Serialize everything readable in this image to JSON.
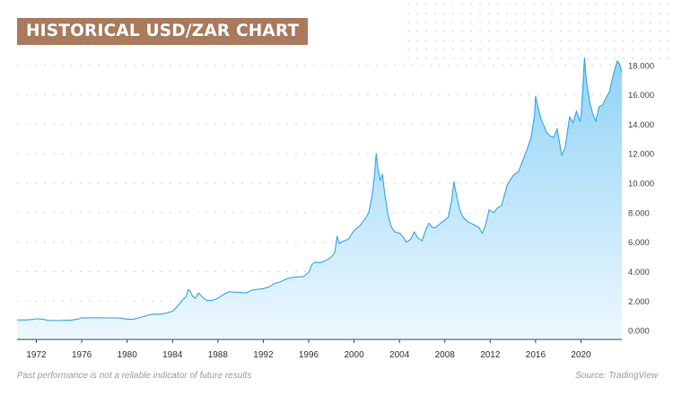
{
  "title": "HISTORICAL USD/ZAR CHART",
  "footnote": "Past performance is not a reliable indicator of future results",
  "source": "Source: TradingView",
  "colors": {
    "title_background": "#a97a5c",
    "line": "#2ea8ea",
    "area_top": "#8fd3f7",
    "area_bottom": "#eef8fe"
  },
  "chart_data": {
    "type": "area",
    "title": "HISTORICAL USD/ZAR CHART",
    "xlabel": "",
    "ylabel": "",
    "xlim": [
      1970.3,
      2023.6
    ],
    "ylim": [
      -0.6,
      18.9
    ],
    "grid": true,
    "y_ticks": [
      "0.000",
      "2.000",
      "4.000",
      "6.000",
      "8.000",
      "10.000",
      "12.000",
      "14.000",
      "16.000",
      "18.000"
    ],
    "y_tick_values": [
      0,
      2,
      4,
      6,
      8,
      10,
      12,
      14,
      16,
      18
    ],
    "x_ticks": [
      "1972",
      "1976",
      "1980",
      "1984",
      "1988",
      "1992",
      "1996",
      "2000",
      "2004",
      "2008",
      "2012",
      "2016",
      "2020"
    ],
    "x_tick_values": [
      1972,
      1976,
      1980,
      1984,
      1988,
      1992,
      1996,
      2000,
      2004,
      2008,
      2012,
      2016,
      2020
    ],
    "series": [
      {
        "x": [
          1970.3,
          1971.0,
          1971.7,
          1972.0,
          1972.5,
          1973.0,
          1973.5,
          1974.0,
          1974.5,
          1975.0,
          1975.5,
          1975.8,
          1976.0,
          1977.0,
          1978.0,
          1979.0,
          1979.5,
          1980.0,
          1980.5,
          1981.0,
          1981.5,
          1982.0,
          1982.5,
          1983.0,
          1983.5,
          1984.0,
          1984.5,
          1984.9,
          1985.2,
          1985.4,
          1985.6,
          1985.8,
          1986.0,
          1986.3,
          1986.6,
          1987.0,
          1987.5,
          1988.0,
          1988.5,
          1989.0,
          1989.5,
          1990.0,
          1990.5,
          1991.0,
          1991.5,
          1992.0,
          1992.5,
          1993.0,
          1993.5,
          1994.0,
          1994.5,
          1995.0,
          1995.5,
          1996.0,
          1996.3,
          1996.6,
          1997.0,
          1997.5,
          1998.0,
          1998.3,
          1998.5,
          1998.7,
          1999.0,
          1999.5,
          2000.0,
          2000.5,
          2001.0,
          2001.3,
          2001.6,
          2001.8,
          2001.95,
          2002.1,
          2002.3,
          2002.5,
          2002.7,
          2003.0,
          2003.3,
          2003.6,
          2004.0,
          2004.3,
          2004.6,
          2005.0,
          2005.3,
          2005.6,
          2006.0,
          2006.3,
          2006.6,
          2006.9,
          2007.2,
          2007.5,
          2007.8,
          2008.0,
          2008.3,
          2008.6,
          2008.8,
          2009.0,
          2009.3,
          2009.6,
          2010.0,
          2010.5,
          2011.0,
          2011.3,
          2011.6,
          2011.9,
          2012.3,
          2012.6,
          2013.0,
          2013.5,
          2014.0,
          2014.5,
          2015.0,
          2015.3,
          2015.6,
          2015.9,
          2016.0,
          2016.2,
          2016.5,
          2016.8,
          2017.0,
          2017.3,
          2017.6,
          2017.9,
          2018.1,
          2018.3,
          2018.6,
          2018.8,
          2019.0,
          2019.3,
          2019.6,
          2019.9,
          2020.0,
          2020.2,
          2020.3,
          2020.5,
          2020.8,
          2021.0,
          2021.3,
          2021.6,
          2021.9,
          2022.2,
          2022.5,
          2022.8,
          2023.0,
          2023.2,
          2023.4,
          2023.6
        ],
        "values": [
          0.72,
          0.72,
          0.76,
          0.8,
          0.78,
          0.7,
          0.68,
          0.68,
          0.7,
          0.7,
          0.76,
          0.8,
          0.87,
          0.87,
          0.87,
          0.86,
          0.84,
          0.78,
          0.76,
          0.86,
          0.96,
          1.08,
          1.12,
          1.12,
          1.2,
          1.3,
          1.7,
          2.1,
          2.3,
          2.8,
          2.6,
          2.3,
          2.2,
          2.55,
          2.3,
          2.05,
          2.05,
          2.2,
          2.45,
          2.65,
          2.6,
          2.6,
          2.55,
          2.75,
          2.8,
          2.85,
          2.95,
          3.2,
          3.3,
          3.5,
          3.6,
          3.65,
          3.65,
          3.95,
          4.5,
          4.65,
          4.6,
          4.75,
          5.0,
          5.3,
          6.4,
          5.9,
          6.05,
          6.2,
          6.8,
          7.1,
          7.6,
          8.0,
          9.2,
          10.5,
          12.0,
          11.0,
          10.2,
          10.6,
          9.3,
          7.8,
          7.0,
          6.7,
          6.6,
          6.4,
          6.0,
          6.2,
          6.7,
          6.3,
          6.1,
          6.8,
          7.3,
          7.0,
          7.0,
          7.2,
          7.4,
          7.5,
          7.7,
          8.8,
          10.1,
          9.3,
          8.2,
          7.7,
          7.4,
          7.2,
          7.0,
          6.6,
          7.2,
          8.2,
          8.0,
          8.3,
          8.5,
          9.9,
          10.5,
          10.8,
          11.8,
          12.4,
          13.1,
          14.6,
          15.9,
          15.2,
          14.3,
          13.8,
          13.4,
          13.2,
          13.1,
          13.7,
          12.8,
          11.9,
          12.4,
          13.5,
          14.5,
          14.1,
          14.9,
          14.2,
          14.5,
          17.0,
          18.5,
          16.8,
          15.4,
          14.8,
          14.2,
          15.2,
          15.3,
          15.8,
          16.2,
          17.2,
          17.8,
          18.3,
          18.1,
          17.5
        ]
      }
    ]
  }
}
